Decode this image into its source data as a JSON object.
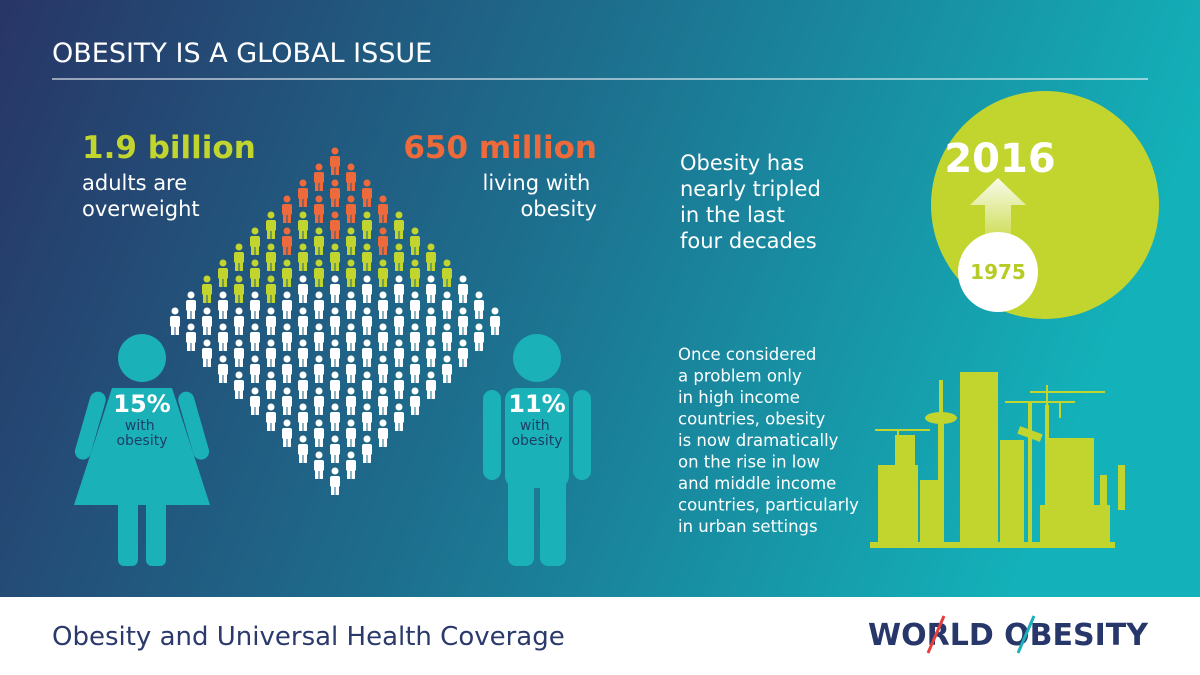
{
  "header": {
    "title": "OBESITY IS A GLOBAL ISSUE"
  },
  "overweight": {
    "figure": "1.9 billion",
    "caption_lines": [
      "adults are",
      "overweight"
    ]
  },
  "obese": {
    "figure": "650 million",
    "caption_lines": [
      "living with",
      "obesity"
    ]
  },
  "women": {
    "percent": "15%",
    "caption_lines": [
      "with",
      "obesity"
    ]
  },
  "men": {
    "percent": "11%",
    "caption_lines": [
      "with",
      "obesity"
    ]
  },
  "trend": {
    "text_lines": [
      "Obesity has",
      "nearly tripled",
      "in the last",
      "four decades"
    ],
    "to_year": "2016",
    "from_year": "1975"
  },
  "urban": {
    "text_lines": [
      "Once considered",
      "a problem only",
      "in high income",
      "countries, obesity",
      "is now dramatically",
      "on the rise in low",
      "and middle income",
      "countries, particularly",
      "in urban settings"
    ]
  },
  "footer": {
    "title": "Obesity and Universal Health Coverage",
    "logo": "WORLD OBESITY"
  }
}
